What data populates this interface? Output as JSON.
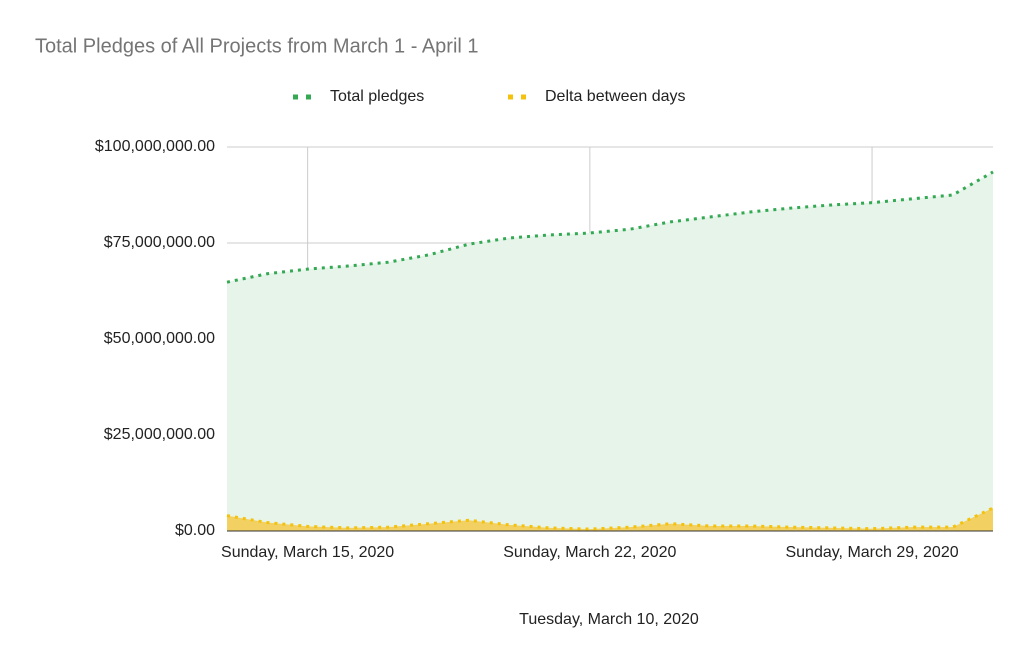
{
  "chart_data": {
    "type": "area",
    "title": "Total Pledges of All Projects from March 1 - April 1",
    "x_label": "Tuesday, March 10, 2020",
    "x": [
      "2020-03-13",
      "2020-03-14",
      "2020-03-15",
      "2020-03-16",
      "2020-03-17",
      "2020-03-18",
      "2020-03-19",
      "2020-03-20",
      "2020-03-21",
      "2020-03-22",
      "2020-03-23",
      "2020-03-24",
      "2020-03-25",
      "2020-03-26",
      "2020-03-27",
      "2020-03-28",
      "2020-03-29",
      "2020-03-30",
      "2020-03-31",
      "2020-04-01"
    ],
    "series": [
      {
        "name": "Total pledges",
        "color": "#34a853",
        "fill": "#e6f4ea",
        "values": [
          64800000,
          67000000,
          68200000,
          69000000,
          70000000,
          71900000,
          74700000,
          76300000,
          77100000,
          77600000,
          78600000,
          80500000,
          81800000,
          83100000,
          84100000,
          84900000,
          85500000,
          86500000,
          87500000,
          93500000
        ]
      },
      {
        "name": "Delta between days",
        "color": "#f4c20d",
        "fill": "#f3c94a",
        "values": [
          4000000,
          2200000,
          1200000,
          800000,
          1000000,
          1900000,
          2800000,
          1600000,
          800000,
          500000,
          1000000,
          1900000,
          1300000,
          1300000,
          1000000,
          800000,
          600000,
          1000000,
          1000000,
          6000000
        ]
      }
    ],
    "xlim": [
      "2020-03-13",
      "2020-04-01"
    ],
    "xticks": [
      {
        "value": "2020-03-15",
        "label": "Sunday, March 15, 2020"
      },
      {
        "value": "2020-03-22",
        "label": "Sunday, March 22, 2020"
      },
      {
        "value": "2020-03-29",
        "label": "Sunday, March 29, 2020"
      }
    ],
    "ylim": [
      0,
      100000000
    ],
    "yticks": [
      {
        "value": 0,
        "label": "$0.00"
      },
      {
        "value": 25000000,
        "label": "$25,000,000.00"
      },
      {
        "value": 50000000,
        "label": "$50,000,000.00"
      },
      {
        "value": 75000000,
        "label": "$75,000,000.00"
      },
      {
        "value": 100000000,
        "label": "$100,000,000.00"
      }
    ],
    "grid": true,
    "legend": "top"
  }
}
